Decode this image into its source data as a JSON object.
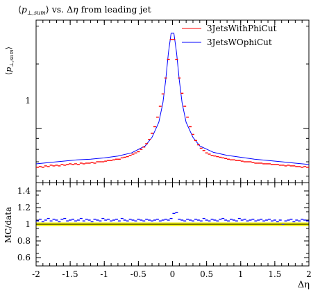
{
  "chart_data": {
    "type": "scatter",
    "title_html": "⟨p⊥,sum⟩ vs. Δη from leading jet",
    "title": {
      "p_open": "⟨",
      "p": "p",
      "sub": "⊥,sum",
      "p_close": "⟩",
      "rest": " vs. Δ",
      "eta": "η",
      "tail": " from leading jet"
    },
    "ylabel": {
      "open": "⟨",
      "p": "p",
      "sub": "⊥,sum",
      "close": "⟩"
    },
    "ratio_ylabel": "MC/data",
    "xlabel": "Δη",
    "xlim": [
      -2,
      2
    ],
    "x_ticks": [
      "-2",
      "-1.5",
      "-1",
      "-0.5",
      "0",
      "0.5",
      "1",
      "1.5",
      "2"
    ],
    "top_ylim_log": [
      0.56,
      3.2
    ],
    "top_y_ticks": [
      "1"
    ],
    "ratio_ylim": [
      0.5,
      1.5
    ],
    "ratio_y_ticks": [
      "1.4",
      "1.2",
      "1",
      "0.8",
      "0.6"
    ],
    "legend_position": "top-right",
    "colors": {
      "with": "#ff0000",
      "without": "#0000ff",
      "band": "#f2f200"
    },
    "series": [
      {
        "name": "3JetsWithPhiCut",
        "x": [
          -1.98,
          -1.94,
          -1.9,
          -1.86,
          -1.82,
          -1.78,
          -1.74,
          -1.7,
          -1.66,
          -1.62,
          -1.58,
          -1.54,
          -1.5,
          -1.46,
          -1.42,
          -1.38,
          -1.34,
          -1.3,
          -1.26,
          -1.22,
          -1.18,
          -1.14,
          -1.1,
          -1.06,
          -1.02,
          -0.98,
          -0.94,
          -0.9,
          -0.86,
          -0.82,
          -0.78,
          -0.74,
          -0.7,
          -0.66,
          -0.62,
          -0.58,
          -0.54,
          -0.5,
          -0.46,
          -0.42,
          -0.38,
          -0.34,
          -0.3,
          -0.26,
          -0.22,
          -0.18,
          -0.14,
          -0.1,
          -0.06,
          -0.02,
          0.02,
          0.06,
          0.1,
          0.14,
          0.18,
          0.22,
          0.26,
          0.3,
          0.34,
          0.38,
          0.42,
          0.46,
          0.5,
          0.54,
          0.58,
          0.62,
          0.66,
          0.7,
          0.74,
          0.78,
          0.82,
          0.86,
          0.9,
          0.94,
          0.98,
          1.02,
          1.06,
          1.1,
          1.14,
          1.18,
          1.22,
          1.26,
          1.3,
          1.34,
          1.38,
          1.42,
          1.46,
          1.5,
          1.54,
          1.58,
          1.62,
          1.66,
          1.7,
          1.74,
          1.78,
          1.82,
          1.86,
          1.9,
          1.94,
          1.98
        ],
        "y": [
          0.66,
          0.665,
          0.66,
          0.67,
          0.665,
          0.675,
          0.67,
          0.675,
          0.67,
          0.68,
          0.675,
          0.68,
          0.685,
          0.68,
          0.685,
          0.68,
          0.69,
          0.685,
          0.69,
          0.69,
          0.695,
          0.69,
          0.7,
          0.7,
          0.7,
          0.705,
          0.71,
          0.71,
          0.715,
          0.72,
          0.72,
          0.73,
          0.735,
          0.74,
          0.75,
          0.76,
          0.77,
          0.78,
          0.8,
          0.82,
          0.85,
          0.89,
          0.95,
          1.02,
          1.13,
          1.27,
          1.45,
          1.72,
          2.1,
          2.6,
          2.6,
          2.1,
          1.72,
          1.46,
          1.27,
          1.13,
          1.02,
          0.94,
          0.88,
          0.84,
          0.81,
          0.79,
          0.77,
          0.76,
          0.75,
          0.745,
          0.74,
          0.735,
          0.73,
          0.725,
          0.72,
          0.715,
          0.715,
          0.71,
          0.71,
          0.705,
          0.7,
          0.7,
          0.7,
          0.695,
          0.69,
          0.69,
          0.69,
          0.685,
          0.685,
          0.685,
          0.68,
          0.68,
          0.68,
          0.675,
          0.675,
          0.67,
          0.675,
          0.67,
          0.67,
          0.665,
          0.665,
          0.66,
          0.665,
          0.66
        ]
      },
      {
        "name": "3JetsWOphiCut",
        "x": [
          -2.0,
          -1.8,
          -1.6,
          -1.4,
          -1.2,
          -1.0,
          -0.8,
          -0.6,
          -0.4,
          -0.3,
          -0.2,
          -0.14,
          -0.1,
          -0.06,
          -0.02,
          0.02,
          0.06,
          0.1,
          0.14,
          0.2,
          0.3,
          0.4,
          0.6,
          0.8,
          1.0,
          1.2,
          1.4,
          1.6,
          1.8,
          2.0
        ],
        "y": [
          0.685,
          0.695,
          0.705,
          0.715,
          0.72,
          0.73,
          0.745,
          0.77,
          0.83,
          0.91,
          1.07,
          1.32,
          1.68,
          2.25,
          2.78,
          2.78,
          2.25,
          1.68,
          1.32,
          1.07,
          0.91,
          0.83,
          0.775,
          0.75,
          0.735,
          0.72,
          0.71,
          0.7,
          0.69,
          0.68
        ]
      }
    ],
    "ratio_series": {
      "x": [
        -1.98,
        -1.94,
        -1.9,
        -1.86,
        -1.82,
        -1.78,
        -1.74,
        -1.7,
        -1.66,
        -1.62,
        -1.58,
        -1.54,
        -1.5,
        -1.46,
        -1.42,
        -1.38,
        -1.34,
        -1.3,
        -1.26,
        -1.22,
        -1.18,
        -1.14,
        -1.1,
        -1.06,
        -1.02,
        -0.98,
        -0.94,
        -0.9,
        -0.86,
        -0.82,
        -0.78,
        -0.74,
        -0.7,
        -0.66,
        -0.62,
        -0.58,
        -0.54,
        -0.5,
        -0.46,
        -0.42,
        -0.38,
        -0.34,
        -0.3,
        -0.26,
        -0.22,
        -0.18,
        -0.14,
        -0.1,
        -0.06,
        -0.02,
        0.02,
        0.06,
        0.1,
        0.14,
        0.18,
        0.22,
        0.26,
        0.3,
        0.34,
        0.38,
        0.42,
        0.46,
        0.5,
        0.54,
        0.58,
        0.62,
        0.66,
        0.7,
        0.74,
        0.78,
        0.82,
        0.86,
        0.9,
        0.94,
        0.98,
        1.02,
        1.06,
        1.1,
        1.14,
        1.18,
        1.22,
        1.26,
        1.3,
        1.34,
        1.38,
        1.42,
        1.46,
        1.5,
        1.54,
        1.58,
        1.62,
        1.66,
        1.7,
        1.74,
        1.78,
        1.82,
        1.86,
        1.9,
        1.94,
        1.98
      ],
      "y": [
        1.04,
        1.06,
        1.03,
        1.05,
        1.07,
        1.04,
        1.06,
        1.05,
        1.03,
        1.06,
        1.07,
        1.04,
        1.05,
        1.06,
        1.04,
        1.05,
        1.07,
        1.04,
        1.06,
        1.05,
        1.03,
        1.06,
        1.05,
        1.04,
        1.07,
        1.05,
        1.06,
        1.04,
        1.05,
        1.06,
        1.04,
        1.07,
        1.05,
        1.04,
        1.06,
        1.05,
        1.04,
        1.06,
        1.05,
        1.04,
        1.06,
        1.05,
        1.04,
        1.05,
        1.06,
        1.04,
        1.05,
        1.06,
        1.05,
        1.07,
        1.13,
        1.14,
        1.06,
        1.05,
        1.04,
        1.06,
        1.05,
        1.04,
        1.06,
        1.05,
        1.04,
        1.07,
        1.05,
        1.04,
        1.06,
        1.05,
        1.04,
        1.06,
        1.07,
        1.05,
        1.04,
        1.06,
        1.05,
        1.04,
        1.07,
        1.05,
        1.06,
        1.04,
        1.05,
        1.06,
        1.04,
        1.05,
        1.06,
        1.04,
        1.05,
        1.06,
        1.04,
        1.05,
        1.03,
        1.05,
        1.0,
        1.04,
        1.05,
        1.06,
        1.03,
        1.05,
        1.04,
        1.06,
        1.05,
        1.04
      ]
    }
  }
}
